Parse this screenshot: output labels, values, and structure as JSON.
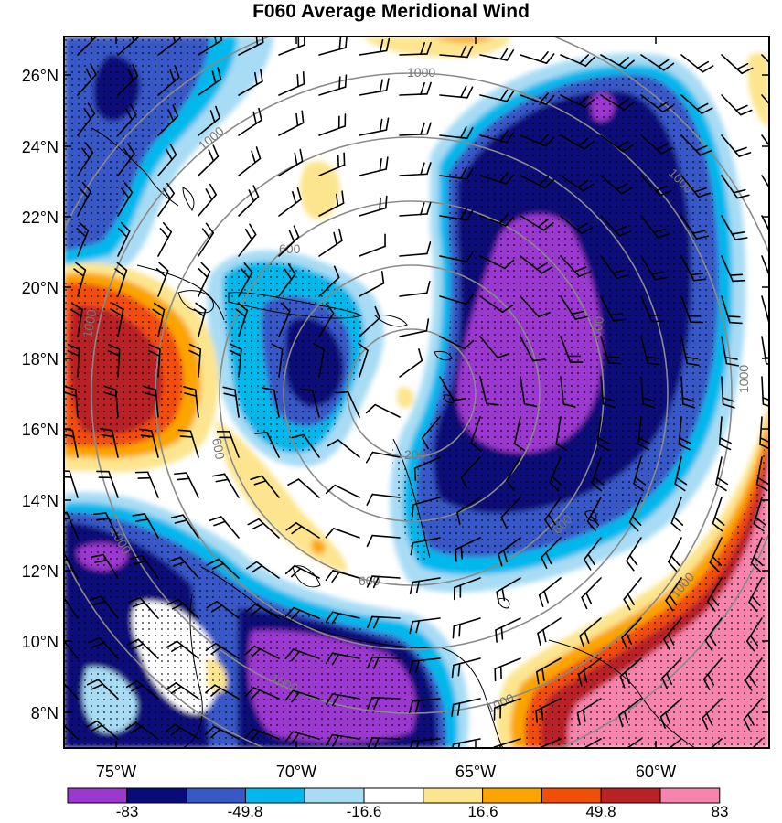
{
  "title": "F060 Average Meridional Wind",
  "lat_labels": [
    "26°N",
    "24°N",
    "22°N",
    "20°N",
    "18°N",
    "16°N",
    "14°N",
    "12°N",
    "10°N",
    "8°N"
  ],
  "lon_labels": [
    "75°W",
    "70°W",
    "65°W",
    "60°W"
  ],
  "colorbar": {
    "colors": [
      "#9b38cf",
      "#090b7a",
      "#3858c8",
      "#00b8ec",
      "#a8dcf4",
      "#ffffff",
      "#fce58e",
      "#fca400",
      "#f24e08",
      "#b82226",
      "#f684ac"
    ],
    "labels": [
      "-83",
      "-49.8",
      "-16.6",
      "16.6",
      "49.8",
      "83"
    ]
  },
  "range_rings": {
    "center": "18°N 67°W",
    "labels": [
      "200",
      "600",
      "1000"
    ]
  },
  "ring_label_texts": [
    "200",
    "600",
    "600",
    "600",
    "600",
    "600",
    "1000",
    "1000",
    "1000",
    "1000",
    "1000",
    "1000",
    "1000",
    "1000",
    "1000"
  ]
}
